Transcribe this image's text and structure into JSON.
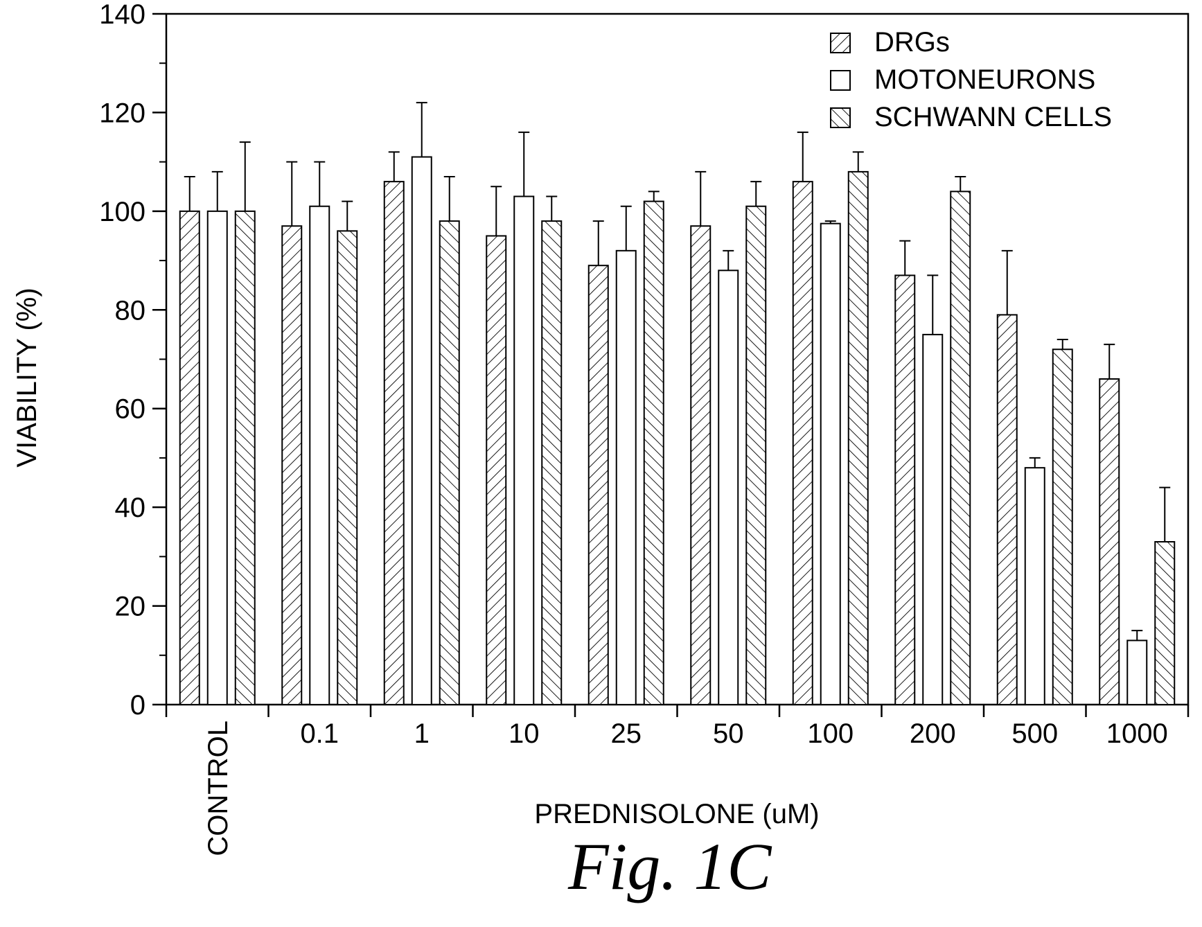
{
  "figure_label": "Fig.  1C",
  "colors": {
    "ink": "#000000",
    "background": "#ffffff"
  },
  "chart_data": {
    "type": "bar",
    "title": "",
    "xlabel": "PREDNISOLONE (uM)",
    "ylabel": "VIABILITY (%)",
    "ylim": [
      0,
      140
    ],
    "yticks": [
      0,
      20,
      40,
      60,
      80,
      100,
      120,
      140
    ],
    "categories": [
      "CONTROL",
      "0.1",
      "1",
      "10",
      "25",
      "50",
      "100",
      "200",
      "500",
      "1000"
    ],
    "legend_position": "top-right",
    "grid": false,
    "series": [
      {
        "name": "DRGs",
        "pattern": "hatch-forward",
        "values": [
          100,
          97,
          106,
          95,
          89,
          97,
          106,
          87,
          79,
          66
        ],
        "errors": [
          7,
          13,
          6,
          10,
          9,
          11,
          10,
          7,
          13,
          7
        ]
      },
      {
        "name": "MOTONEURONS",
        "pattern": "solid-white",
        "values": [
          100,
          101,
          111,
          103,
          92,
          88,
          97.5,
          75,
          48,
          13
        ],
        "errors": [
          8,
          9,
          11,
          13,
          9,
          4,
          0.5,
          12,
          2,
          2
        ]
      },
      {
        "name": "SCHWANN CELLS",
        "pattern": "hatch-backward",
        "values": [
          100,
          96,
          98,
          98,
          102,
          101,
          108,
          104,
          72,
          33
        ],
        "errors": [
          14,
          6,
          9,
          5,
          2,
          5,
          4,
          3,
          2,
          11
        ]
      }
    ]
  }
}
